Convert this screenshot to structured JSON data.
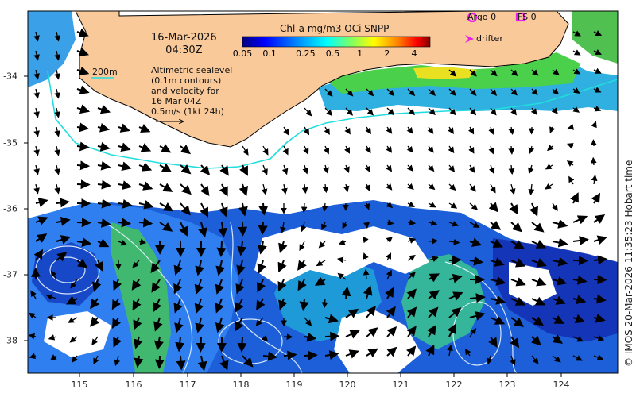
{
  "title": {
    "date": "16-Mar-2026",
    "time": "04:30Z"
  },
  "colorbar": {
    "label": "Chl-a mg/m3 OCi SNPP",
    "ticks": [
      "0.05",
      "0.1",
      "0.25",
      "0.5",
      "1",
      "2",
      "4"
    ],
    "scale": "log",
    "range": [
      0.05,
      6
    ],
    "colors": [
      "#00007f",
      "#0000ff",
      "#0080ff",
      "#00ffff",
      "#80ff80",
      "#ffff00",
      "#ff8000",
      "#ff0000",
      "#7f0000"
    ]
  },
  "legend": {
    "argo": "Argo 0",
    "fs": "FS 0",
    "drifter": "drifter",
    "isobath": "200m",
    "argo_color": "#e81fe8",
    "drifter_color": "#e81fe8",
    "isobath_color": "#22dddd"
  },
  "altimetry_note": {
    "lines": [
      "Altimetric sealevel",
      "(0.1m contours)",
      "and velocity for",
      "16 Mar 04Z"
    ],
    "scale_label": "0.5m/s (1kt 24h)"
  },
  "axes": {
    "x_ticks": [
      "115",
      "116",
      "117",
      "118",
      "119",
      "120",
      "121",
      "122",
      "123",
      "124"
    ],
    "y_ticks": [
      "-34",
      "-35",
      "-36",
      "-37",
      "-38"
    ]
  },
  "credit": "© IMOS 20-Mar-2026 11:35:23 Hobart time",
  "colors": {
    "land": "#f9c99a",
    "coast": "#000000",
    "ocean_deep": "#1050d0",
    "ocean_mid": "#2a8cf0",
    "ocean_green": "#3fc07a",
    "cloud": "#ffffff"
  }
}
